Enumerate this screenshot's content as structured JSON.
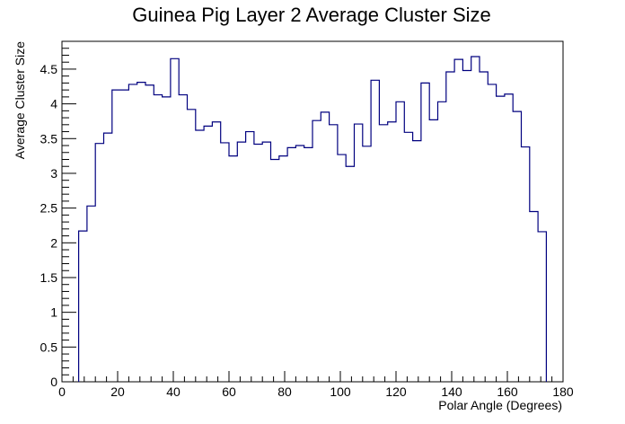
{
  "chart_data": {
    "type": "histogram-step",
    "title": "Guinea Pig Layer 2 Average Cluster Size",
    "xlabel": "Polar Angle (Degrees)",
    "ylabel": "Average Cluster Size",
    "xlim": [
      0,
      180
    ],
    "ylim": [
      0,
      4.9
    ],
    "x_ticks": [
      "0",
      "20",
      "40",
      "60",
      "80",
      "100",
      "120",
      "140",
      "160",
      "180"
    ],
    "y_ticks": [
      "0",
      "0.5",
      "1",
      "1.5",
      "2",
      "2.5",
      "3",
      "3.5",
      "4",
      "4.5"
    ],
    "grid": false,
    "line_color": "#00007f",
    "bin_width": 3,
    "bin_start": 6,
    "values": [
      2.17,
      2.53,
      3.43,
      3.58,
      4.2,
      4.2,
      4.28,
      4.31,
      4.27,
      4.13,
      4.1,
      4.65,
      4.13,
      3.92,
      3.62,
      3.68,
      3.74,
      3.44,
      3.25,
      3.45,
      3.6,
      3.42,
      3.45,
      3.2,
      3.25,
      3.37,
      3.4,
      3.37,
      3.76,
      3.88,
      3.7,
      3.27,
      3.1,
      3.71,
      3.39,
      4.34,
      3.7,
      3.74,
      4.03,
      3.59,
      3.47,
      4.3,
      3.77,
      4.03,
      4.46,
      4.64,
      4.48,
      4.68,
      4.46,
      4.28,
      4.11,
      4.14,
      3.89,
      3.38,
      2.45,
      2.16
    ]
  }
}
